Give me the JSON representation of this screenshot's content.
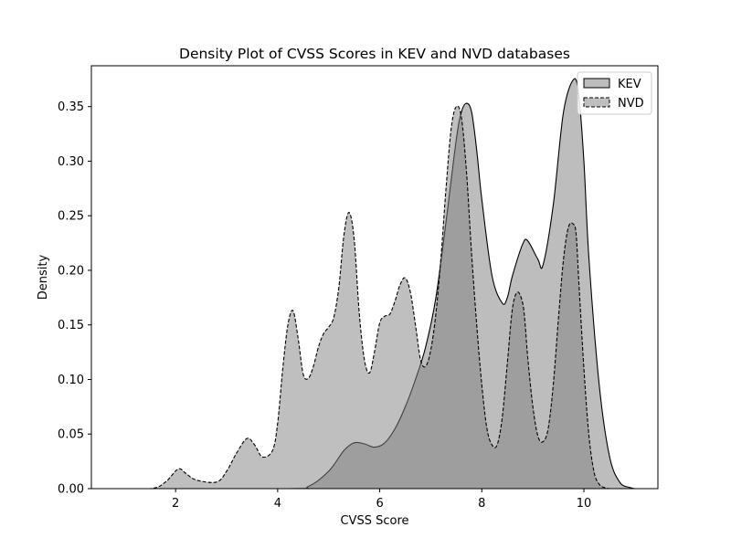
{
  "chart_data": {
    "type": "area",
    "title": "Density Plot of CVSS Scores in KEV and NVD databases",
    "xlabel": "CVSS Score",
    "ylabel": "Density",
    "xlim": [
      0.35,
      11.45
    ],
    "ylim": [
      0,
      0.3874
    ],
    "xticks": [
      2,
      4,
      6,
      8,
      10
    ],
    "xtick_labels": [
      "2",
      "4",
      "6",
      "8",
      "10"
    ],
    "yticks": [
      0,
      0.05,
      0.1,
      0.15,
      0.2,
      0.25,
      0.3,
      0.35
    ],
    "ytick_labels": [
      "0.00",
      "0.05",
      "0.10",
      "0.15",
      "0.20",
      "0.25",
      "0.30",
      "0.35"
    ],
    "grid": false,
    "legend_position": "top-right",
    "series": [
      {
        "name": "KEV",
        "line_style": "solid",
        "fill_color": "#bdbdbd",
        "fill_opacity": 1.0,
        "x": [
          0.6,
          4.2,
          4.6,
          5.0,
          5.3,
          5.5,
          5.7,
          5.9,
          6.1,
          6.3,
          6.5,
          6.7,
          6.9,
          7.1,
          7.3,
          7.5,
          7.6,
          7.7,
          7.8,
          7.9,
          8.0,
          8.2,
          8.4,
          8.5,
          8.6,
          8.8,
          8.9,
          9.1,
          9.2,
          9.4,
          9.6,
          9.8,
          9.9,
          10.0,
          10.1,
          10.3,
          10.5,
          10.7,
          10.9,
          11.0
        ],
        "y": [
          0.0,
          0.0,
          0.002,
          0.016,
          0.035,
          0.042,
          0.041,
          0.038,
          0.042,
          0.055,
          0.075,
          0.1,
          0.13,
          0.175,
          0.245,
          0.32,
          0.345,
          0.353,
          0.345,
          0.31,
          0.265,
          0.195,
          0.17,
          0.175,
          0.195,
          0.224,
          0.227,
          0.21,
          0.205,
          0.26,
          0.345,
          0.375,
          0.36,
          0.3,
          0.21,
          0.095,
          0.03,
          0.006,
          0.001,
          0.0
        ]
      },
      {
        "name": "NVD",
        "line_style": "dashed",
        "fill_color": "#808080",
        "fill_opacity": 0.5,
        "x": [
          0.6,
          1.5,
          1.8,
          2.05,
          2.2,
          2.4,
          2.8,
          3.0,
          3.2,
          3.4,
          3.55,
          3.7,
          3.9,
          4.0,
          4.1,
          4.2,
          4.3,
          4.4,
          4.5,
          4.6,
          4.7,
          4.8,
          4.9,
          5.0,
          5.1,
          5.2,
          5.3,
          5.4,
          5.5,
          5.6,
          5.7,
          5.8,
          5.9,
          6.0,
          6.1,
          6.2,
          6.3,
          6.4,
          6.5,
          6.6,
          6.7,
          6.8,
          6.9,
          7.0,
          7.1,
          7.2,
          7.3,
          7.4,
          7.5,
          7.6,
          7.7,
          7.8,
          7.9,
          8.0,
          8.1,
          8.2,
          8.3,
          8.4,
          8.5,
          8.6,
          8.7,
          8.8,
          8.85,
          8.9,
          9.0,
          9.1,
          9.2,
          9.3,
          9.4,
          9.5,
          9.6,
          9.7,
          9.8,
          9.85,
          9.9,
          10.0,
          10.1,
          10.2,
          10.3,
          10.4,
          10.5,
          10.6
        ],
        "y": [
          0.0,
          0.0,
          0.006,
          0.018,
          0.014,
          0.008,
          0.006,
          0.016,
          0.033,
          0.046,
          0.04,
          0.029,
          0.035,
          0.06,
          0.11,
          0.15,
          0.163,
          0.138,
          0.105,
          0.101,
          0.112,
          0.13,
          0.142,
          0.148,
          0.157,
          0.185,
          0.233,
          0.253,
          0.228,
          0.16,
          0.118,
          0.106,
          0.126,
          0.152,
          0.158,
          0.16,
          0.172,
          0.187,
          0.193,
          0.18,
          0.15,
          0.118,
          0.112,
          0.127,
          0.16,
          0.212,
          0.276,
          0.33,
          0.35,
          0.34,
          0.29,
          0.215,
          0.15,
          0.095,
          0.055,
          0.04,
          0.04,
          0.065,
          0.115,
          0.165,
          0.18,
          0.17,
          0.15,
          0.12,
          0.075,
          0.048,
          0.043,
          0.055,
          0.095,
          0.155,
          0.21,
          0.24,
          0.242,
          0.232,
          0.19,
          0.11,
          0.048,
          0.015,
          0.004,
          0.001,
          0.0,
          0.0
        ]
      }
    ]
  }
}
